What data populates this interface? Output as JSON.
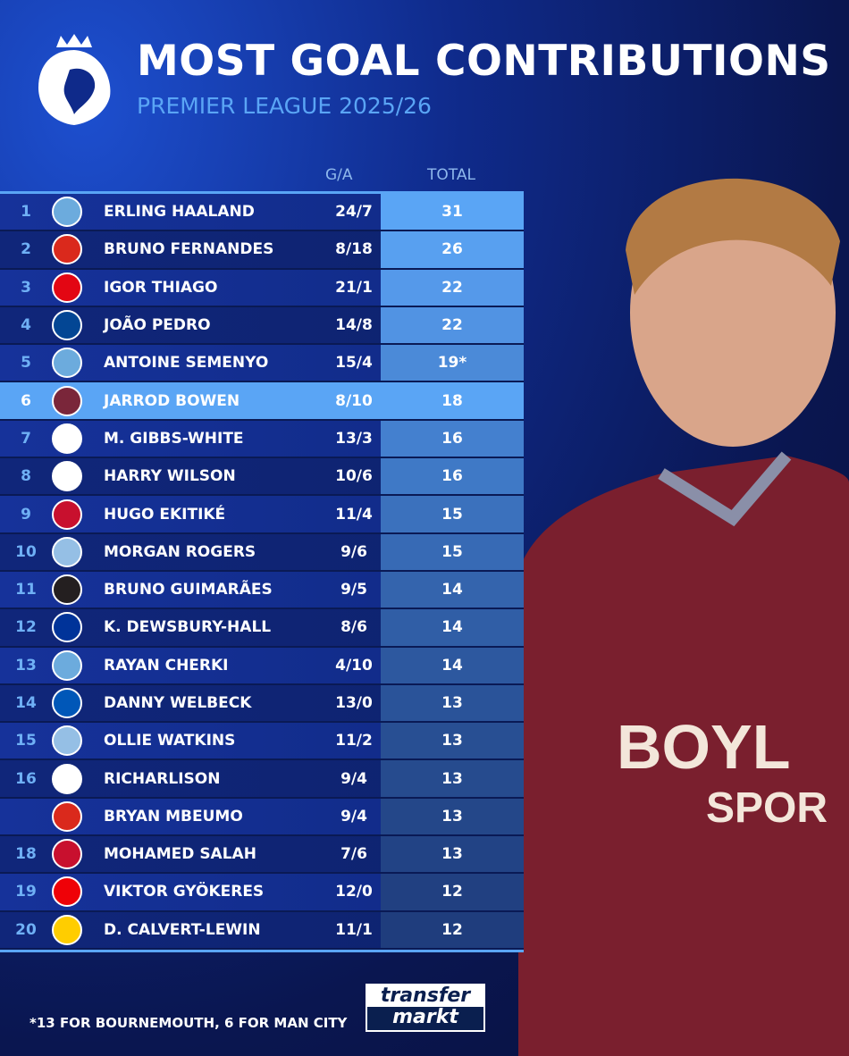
{
  "header": {
    "title": "MOST GOAL CONTRIBUTIONS",
    "subtitle": "PREMIER LEAGUE 2025/26"
  },
  "columns": {
    "ga": "G/A",
    "total": "TOTAL"
  },
  "rows": [
    {
      "rank": "1",
      "club": "Manchester City",
      "color": "#6cabdd",
      "name": "ERLING HAALAND",
      "ga": "24/7",
      "total": "31"
    },
    {
      "rank": "2",
      "club": "Manchester United",
      "color": "#da291c",
      "name": "BRUNO FERNANDES",
      "ga": "8/18",
      "total": "26"
    },
    {
      "rank": "3",
      "club": "Brentford",
      "color": "#e30613",
      "name": "IGOR THIAGO",
      "ga": "21/1",
      "total": "22"
    },
    {
      "rank": "4",
      "club": "Chelsea",
      "color": "#034694",
      "name": "JOÃO PEDRO",
      "ga": "14/8",
      "total": "22"
    },
    {
      "rank": "5",
      "club": "Manchester City",
      "color": "#6cabdd",
      "name": "ANTOINE SEMENYO",
      "ga": "15/4",
      "total": "19*"
    },
    {
      "rank": "6",
      "club": "West Ham",
      "color": "#7a263a",
      "name": "JARROD BOWEN",
      "ga": "8/10",
      "total": "18"
    },
    {
      "rank": "7",
      "club": "Nottingham Forest",
      "color": "#ffffff",
      "name": "M. GIBBS-WHITE",
      "ga": "13/3",
      "total": "16"
    },
    {
      "rank": "8",
      "club": "Fulham",
      "color": "#ffffff",
      "name": "HARRY WILSON",
      "ga": "10/6",
      "total": "16"
    },
    {
      "rank": "9",
      "club": "Liverpool",
      "color": "#c8102e",
      "name": "HUGO EKITIKÉ",
      "ga": "11/4",
      "total": "15"
    },
    {
      "rank": "10",
      "club": "Aston Villa",
      "color": "#95bfe5",
      "name": "MORGAN ROGERS",
      "ga": "9/6",
      "total": "15"
    },
    {
      "rank": "11",
      "club": "Newcastle",
      "color": "#241f20",
      "name": "BRUNO GUIMARÃES",
      "ga": "9/5",
      "total": "14"
    },
    {
      "rank": "12",
      "club": "Everton",
      "color": "#003399",
      "name": "K. DEWSBURY-HALL",
      "ga": "8/6",
      "total": "14"
    },
    {
      "rank": "13",
      "club": "Manchester City",
      "color": "#6cabdd",
      "name": "RAYAN CHERKI",
      "ga": "4/10",
      "total": "14"
    },
    {
      "rank": "14",
      "club": "Brighton",
      "color": "#0057b8",
      "name": "DANNY WELBECK",
      "ga": "13/0",
      "total": "13"
    },
    {
      "rank": "15",
      "club": "Aston Villa",
      "color": "#95bfe5",
      "name": "OLLIE WATKINS",
      "ga": "11/2",
      "total": "13"
    },
    {
      "rank": "16",
      "club": "Tottenham",
      "color": "#ffffff",
      "name": "RICHARLISON",
      "ga": "9/4",
      "total": "13"
    },
    {
      "rank": "",
      "club": "Manchester United",
      "color": "#da291c",
      "name": "BRYAN MBEUMO",
      "ga": "9/4",
      "total": "13"
    },
    {
      "rank": "18",
      "club": "Liverpool",
      "color": "#c8102e",
      "name": "MOHAMED SALAH",
      "ga": "7/6",
      "total": "13"
    },
    {
      "rank": "19",
      "club": "Arsenal",
      "color": "#ef0107",
      "name": "VIKTOR GYÖKERES",
      "ga": "12/0",
      "total": "12"
    },
    {
      "rank": "20",
      "club": "Leeds",
      "color": "#ffcd00",
      "name": "D. CALVERT-LEWIN",
      "ga": "11/1",
      "total": "12"
    }
  ],
  "footnote": "*13 FOR BOURNEMOUTH, 6 FOR MAN CITY",
  "brand": {
    "line1": "transfer",
    "line2": "markt"
  },
  "colors": {
    "accent": "#5aa5f5",
    "highlight": "#5aa5f5",
    "background": "#0a1650"
  }
}
